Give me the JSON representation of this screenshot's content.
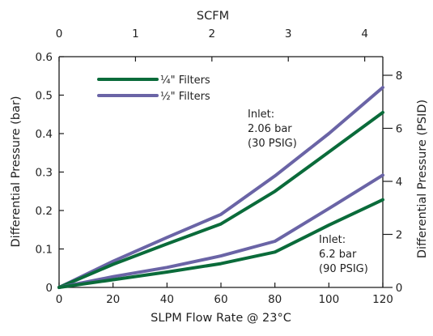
{
  "chart_data": {
    "type": "line",
    "xlabel": "SLPM Flow Rate @ 23°C",
    "ylabel": "Differential Pressure (bar)",
    "x2label": "SCFM",
    "y2label": "Differential Pressure (PSID)",
    "xlim": [
      0,
      120
    ],
    "ylim": [
      0,
      0.6
    ],
    "x2lim": [
      0,
      4.237
    ],
    "y2lim": [
      0,
      8.702
    ],
    "x_ticks": [
      "0",
      "20",
      "40",
      "60",
      "80",
      "100",
      "120"
    ],
    "y_ticks": [
      "0",
      "0.1",
      "0.2",
      "0.3",
      "0.4",
      "0.5",
      "0.6"
    ],
    "x2_ticks": [
      "0",
      "1",
      "2",
      "3",
      "4"
    ],
    "y2_ticks": [
      "0",
      "2",
      "4",
      "6",
      "8"
    ],
    "grid": false,
    "legend_position": "top-left",
    "colors": {
      "quarter": "#0a6b3a",
      "half": "#6a64a6"
    },
    "legend": [
      {
        "label": "¼\" Filters",
        "color": "#0a6b3a"
      },
      {
        "label": "½\" Filters",
        "color": "#6a64a6"
      }
    ],
    "annotations": [
      {
        "lines": [
          "Inlet:",
          "2.06 bar",
          "(30 PSIG)"
        ]
      },
      {
        "lines": [
          "Inlet:",
          "6.2 bar",
          "(90 PSIG)"
        ]
      }
    ],
    "series": [
      {
        "filter": "½\" Filters",
        "inlet": "2.06 bar (30 PSIG)",
        "color": "#6a64a6",
        "x": [
          0,
          20,
          40,
          60,
          80,
          100,
          120
        ],
        "y": [
          0,
          0.068,
          0.13,
          0.19,
          0.29,
          0.4,
          0.52
        ]
      },
      {
        "filter": "¼\" Filters",
        "inlet": "2.06 bar (30 PSIG)",
        "color": "#0a6b3a",
        "x": [
          0,
          20,
          40,
          60,
          80,
          100,
          120
        ],
        "y": [
          0,
          0.06,
          0.113,
          0.165,
          0.25,
          0.352,
          0.455
        ]
      },
      {
        "filter": "½\" Filters",
        "inlet": "6.2 bar (90 PSIG)",
        "color": "#6a64a6",
        "x": [
          0,
          20,
          40,
          60,
          80,
          100,
          120
        ],
        "y": [
          0,
          0.028,
          0.052,
          0.082,
          0.12,
          0.205,
          0.292
        ]
      },
      {
        "filter": "¼\" Filters",
        "inlet": "6.2 bar (90 PSIG)",
        "color": "#0a6b3a",
        "x": [
          0,
          20,
          40,
          60,
          80,
          100,
          120
        ],
        "y": [
          0,
          0.02,
          0.04,
          0.062,
          0.092,
          0.162,
          0.228
        ]
      }
    ]
  }
}
